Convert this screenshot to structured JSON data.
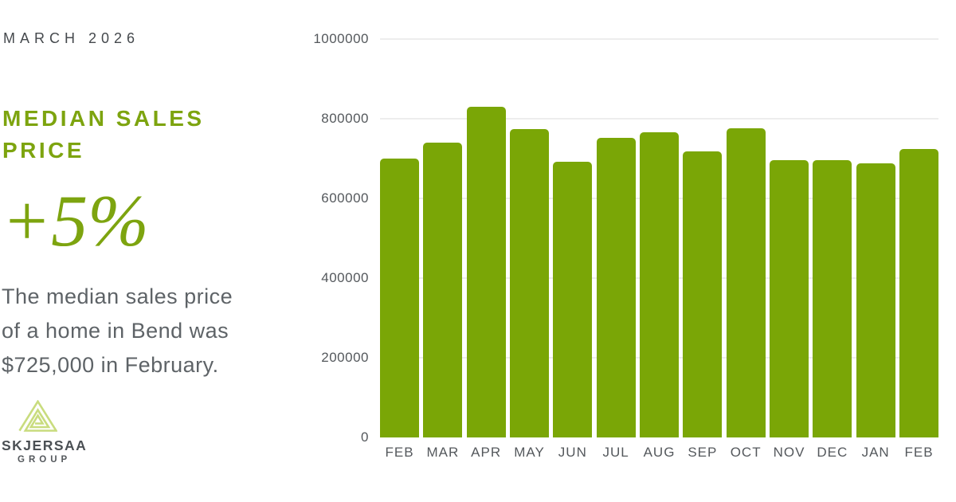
{
  "page": {
    "date_label": "MARCH 2026"
  },
  "stat": {
    "title": "MEDIAN SALES PRICE",
    "change": "+5%",
    "description": "The median sales price of a home in Bend was $725,000 in February."
  },
  "logo": {
    "name": "SKJERSAA",
    "subtitle": "GROUP",
    "icon": "triangle-spiral-icon",
    "icon_color": "#C9DC7E"
  },
  "colors": {
    "background": "#FFFFFF",
    "accent_green": "#7DA40F",
    "bar_green": "#7AA606",
    "logo_green": "#C9DC7E",
    "date_text": "#45494D",
    "body_text": "#5E6367",
    "axis_text": "#54585C",
    "gridline": "#EDEDED"
  },
  "chart_data": {
    "type": "bar",
    "title": "",
    "xlabel": "",
    "ylabel": "",
    "categories": [
      "FEB",
      "MAR",
      "APR",
      "MAY",
      "JUN",
      "JUL",
      "AUG",
      "SEP",
      "OCT",
      "NOV",
      "DEC",
      "JAN",
      "FEB"
    ],
    "values": [
      700000,
      740000,
      830000,
      775000,
      693000,
      753000,
      767000,
      718000,
      777000,
      697000,
      696000,
      688000,
      725000
    ],
    "ylim": [
      0,
      1000000
    ],
    "yticks": [
      0,
      200000,
      400000,
      600000,
      800000,
      1000000
    ],
    "grid": true,
    "legend": false,
    "bar_color": "#7AA606"
  }
}
